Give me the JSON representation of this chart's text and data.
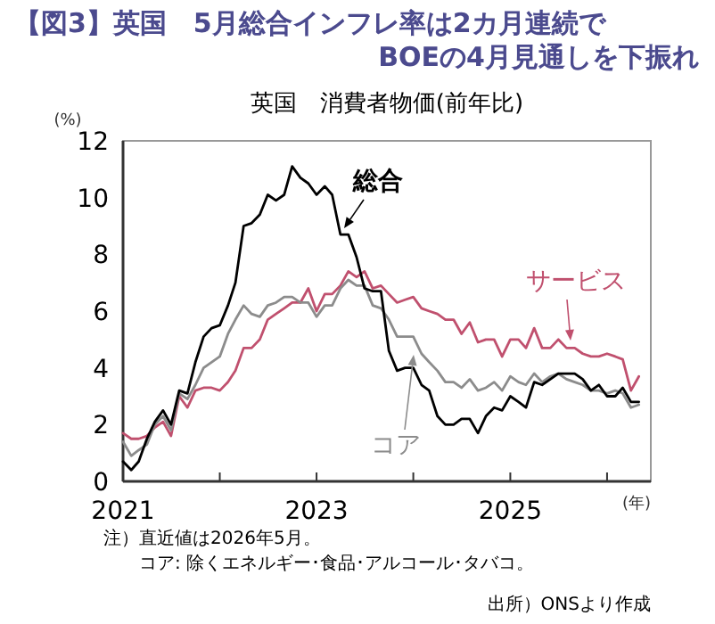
{
  "chart_data": {
    "type": "line",
    "title": "【図3】英国　5月総合インフレ率は2カ月連続で\nBOEの4月見通しを下振れ",
    "subtitle": "英国　消費者物価(前年比)",
    "ylabel": "(%)",
    "xlabel": "(年)",
    "annotations": [
      "注）直近値は2026年5月。",
      "コア: 除くエネルギー･食品･アルコール･タバコ。",
      "出所）ONSより作成"
    ],
    "xlim": [
      "2021-01-01",
      "2026-06-15"
    ],
    "ylim": [
      0,
      12
    ],
    "yticks": [
      0,
      2,
      4,
      6,
      8,
      10,
      12
    ],
    "xticks": [
      {
        "value": "2021-01-01",
        "label": "2021"
      },
      {
        "value": "2022-01-01",
        "label": null
      },
      {
        "value": "2023-01-01",
        "label": "2023"
      },
      {
        "value": "2024-01-01",
        "label": null
      },
      {
        "value": "2025-01-01",
        "label": "2025"
      },
      {
        "value": "2026-01-01",
        "label": null
      }
    ],
    "grid": false,
    "marker": "none",
    "line_style": "solid",
    "x": [
      "2021-01",
      "2021-02",
      "2021-03",
      "2021-04",
      "2021-05",
      "2021-06",
      "2021-07",
      "2021-08",
      "2021-09",
      "2021-10",
      "2021-11",
      "2021-12",
      "2022-01",
      "2022-02",
      "2022-03",
      "2022-04",
      "2022-05",
      "2022-06",
      "2022-07",
      "2022-08",
      "2022-09",
      "2022-10",
      "2022-11",
      "2022-12",
      "2023-01",
      "2023-02",
      "2023-03",
      "2023-04",
      "2023-05",
      "2023-06",
      "2023-07",
      "2023-08",
      "2023-09",
      "2023-10",
      "2023-11",
      "2023-12",
      "2024-01",
      "2024-02",
      "2024-03",
      "2024-04",
      "2024-05",
      "2024-06",
      "2024-07",
      "2024-08",
      "2024-09",
      "2024-10",
      "2024-11",
      "2024-12",
      "2025-01",
      "2025-02",
      "2025-03",
      "2025-04",
      "2025-05",
      "2025-06",
      "2025-07",
      "2025-08",
      "2025-09",
      "2025-10",
      "2025-11",
      "2025-12",
      "2026-01",
      "2026-02",
      "2026-03",
      "2026-04",
      "2026-05"
    ],
    "series": [
      {
        "name": "サービス",
        "color": "#c0506e",
        "values": [
          1.7,
          1.5,
          1.5,
          1.6,
          1.9,
          2.1,
          1.6,
          3.0,
          2.6,
          3.2,
          3.3,
          3.3,
          3.2,
          3.5,
          3.9,
          4.7,
          4.7,
          5.0,
          5.7,
          5.9,
          6.1,
          6.3,
          6.3,
          6.8,
          6.0,
          6.6,
          6.6,
          6.9,
          7.4,
          7.2,
          7.4,
          6.8,
          6.9,
          6.6,
          6.3,
          6.4,
          6.5,
          6.1,
          6.0,
          5.9,
          5.7,
          5.7,
          5.2,
          5.6,
          4.9,
          5.0,
          5.0,
          4.4,
          5.0,
          5.0,
          4.7,
          5.4,
          4.7,
          4.7,
          5.0,
          4.7,
          4.7,
          4.5,
          4.4,
          4.4,
          4.5,
          4.4,
          4.3,
          3.2,
          3.7
        ]
      },
      {
        "name": "コア",
        "color": "#8c8c8c",
        "values": [
          1.4,
          0.9,
          1.1,
          1.3,
          2.0,
          2.3,
          1.8,
          3.1,
          2.9,
          3.4,
          4.0,
          4.2,
          4.4,
          5.2,
          5.7,
          6.2,
          5.9,
          5.8,
          6.2,
          6.3,
          6.5,
          6.5,
          6.3,
          6.3,
          5.8,
          6.2,
          6.2,
          6.8,
          7.1,
          6.9,
          6.9,
          6.2,
          6.1,
          5.7,
          5.1,
          5.1,
          5.1,
          4.5,
          4.2,
          3.9,
          3.5,
          3.5,
          3.3,
          3.6,
          3.2,
          3.3,
          3.5,
          3.2,
          3.7,
          3.5,
          3.4,
          3.8,
          3.5,
          3.7,
          3.8,
          3.6,
          3.5,
          3.4,
          3.2,
          3.2,
          3.1,
          3.2,
          3.1,
          2.6,
          2.7
        ]
      },
      {
        "name": "総合",
        "color": "#000000",
        "values": [
          0.7,
          0.4,
          0.7,
          1.5,
          2.1,
          2.5,
          2.0,
          3.2,
          3.1,
          4.2,
          5.1,
          5.4,
          5.5,
          6.2,
          7.0,
          9.0,
          9.1,
          9.4,
          10.1,
          9.9,
          10.1,
          11.1,
          10.7,
          10.5,
          10.1,
          10.4,
          10.1,
          8.7,
          8.7,
          7.9,
          6.8,
          6.7,
          6.7,
          4.6,
          3.9,
          4.0,
          4.0,
          3.4,
          3.2,
          2.3,
          2.0,
          2.0,
          2.2,
          2.2,
          1.7,
          2.3,
          2.6,
          2.5,
          3.0,
          2.8,
          2.6,
          3.5,
          3.4,
          3.6,
          3.8,
          3.8,
          3.8,
          3.6,
          3.2,
          3.4,
          3.0,
          3.0,
          3.3,
          2.8,
          2.8
        ]
      }
    ]
  }
}
